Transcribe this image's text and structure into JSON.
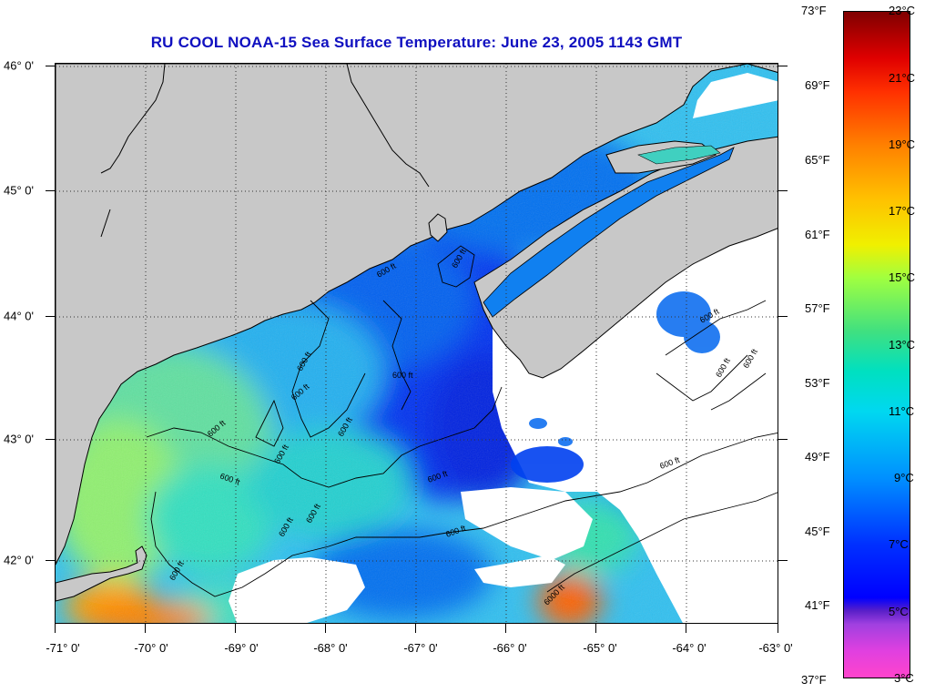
{
  "title": "RU COOL  NOAA-15  Sea Surface Temperature:  June 23, 2005 1143 GMT",
  "colors": {
    "land": "#c8c8c8",
    "cloud": "#ffffff",
    "coast": "#000000",
    "title": "#1010c0"
  },
  "map": {
    "lat_labels": [
      "46° 0'",
      "45° 0'",
      "44° 0'",
      "43° 0'",
      "42° 0'"
    ],
    "lon_labels": [
      "-71° 0'",
      "-70° 0'",
      "-69° 0'",
      "-68° 0'",
      "-67° 0'",
      "-66° 0'",
      "-65° 0'",
      "-64° 0'",
      "-63° 0'"
    ],
    "lat_range": [
      41.5,
      46.05
    ],
    "lon_range": [
      -71.0,
      -63.0
    ],
    "grid": "dotted",
    "contour_labels": [
      "600 ft",
      "600 ft",
      "600 ft",
      "600 ft",
      "600 ft",
      "600 ft",
      "600 ft",
      "600 ft",
      "600 ft",
      "600 ft",
      "600 ft",
      "600 ft",
      "600 ft",
      "600 ft",
      "600 ft",
      "600 ft",
      "600 ft",
      "600 ft",
      "6000 ft"
    ]
  },
  "colorbar": {
    "fahrenheit_labels": [
      "73°F",
      "69°F",
      "65°F",
      "61°F",
      "57°F",
      "53°F",
      "49°F",
      "45°F",
      "41°F",
      "37°F"
    ],
    "celsius_labels": [
      "23°C",
      "21°C",
      "19°C",
      "17°C",
      "15°C",
      "13°C",
      "11°C",
      "9°C",
      "7°C",
      "5°C",
      "3°C"
    ]
  }
}
